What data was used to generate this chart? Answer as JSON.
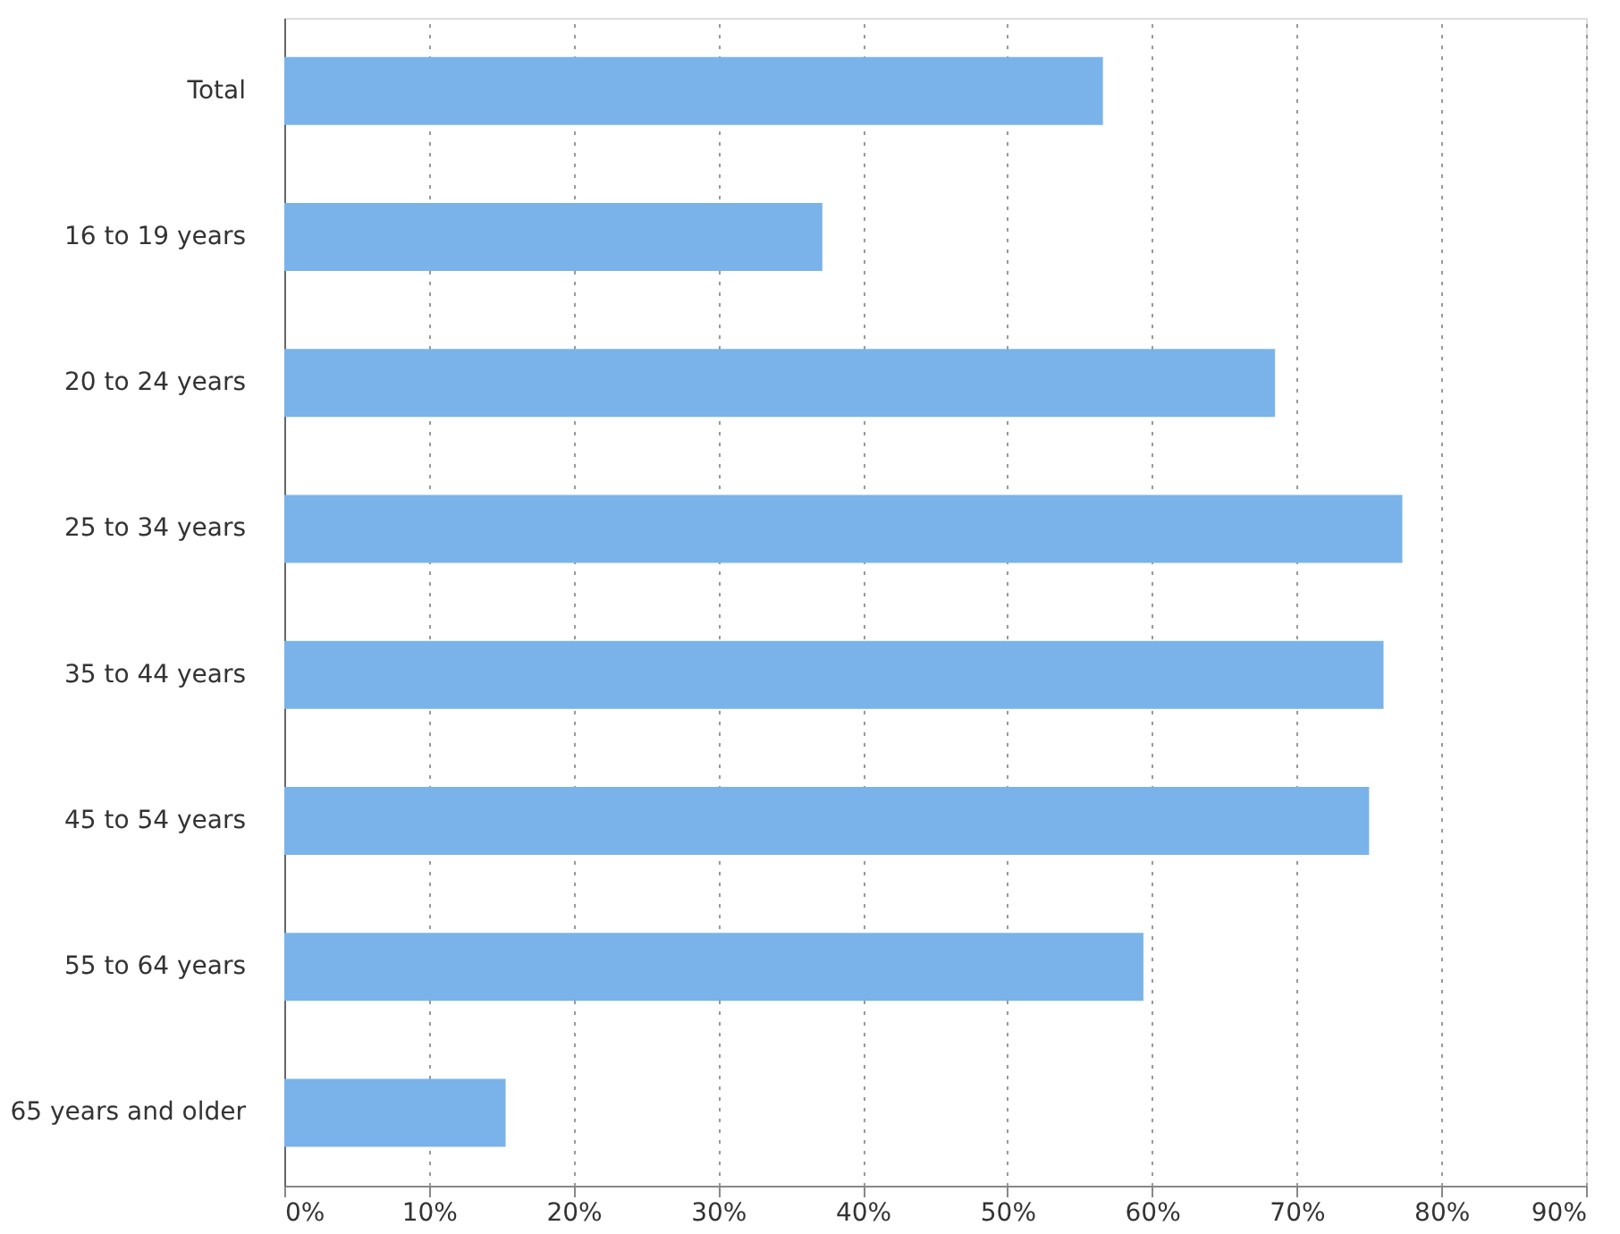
{
  "chart_data": {
    "type": "bar",
    "orientation": "horizontal",
    "categories": [
      "Total",
      "16 to 19 years",
      "20 to 24 years",
      "25 to 34 years",
      "35 to 44 years",
      "45 to 54 years",
      "55 to 64 years",
      "65 years and older"
    ],
    "values": [
      56.6,
      37.2,
      68.5,
      77.3,
      76.0,
      75.0,
      59.4,
      15.3
    ],
    "color": "#7ab3ea",
    "xlim": [
      0,
      90
    ],
    "xticks": [
      {
        "value": 0,
        "label": "0%"
      },
      {
        "value": 10,
        "label": "10%"
      },
      {
        "value": 20,
        "label": "20%"
      },
      {
        "value": 30,
        "label": "30%"
      },
      {
        "value": 40,
        "label": "40%"
      },
      {
        "value": 50,
        "label": "50%"
      },
      {
        "value": 60,
        "label": "60%"
      },
      {
        "value": 70,
        "label": "70%"
      },
      {
        "value": 80,
        "label": "80%"
      },
      {
        "value": 90,
        "label": "90%"
      }
    ],
    "grid": "x"
  }
}
